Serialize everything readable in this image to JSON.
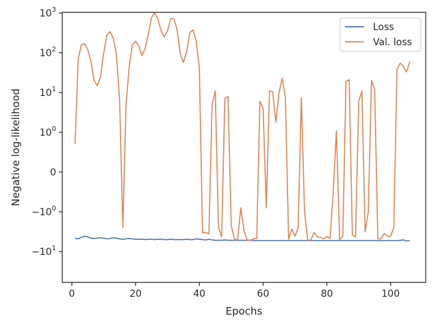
{
  "chart_data": {
    "type": "line",
    "title": "",
    "xlabel": "Epochs",
    "ylabel": "Negative log-likelihood",
    "yscale": "symlog",
    "xlim": [
      -3,
      111
    ],
    "x_ticks": [
      0,
      20,
      40,
      60,
      80,
      100
    ],
    "x_tick_labels": [
      "0",
      "20",
      "40",
      "60",
      "80",
      "100"
    ],
    "y_ticks": [
      {
        "value": -10,
        "base": "−10",
        "exp": "1"
      },
      {
        "value": -1,
        "base": "−10",
        "exp": "0"
      },
      {
        "value": 0,
        "base": "0",
        "exp": ""
      },
      {
        "value": 1,
        "base": "10",
        "exp": "0"
      },
      {
        "value": 10,
        "base": "10",
        "exp": "1"
      },
      {
        "value": 100,
        "base": "10",
        "exp": "2"
      },
      {
        "value": 1000,
        "base": "10",
        "exp": "3"
      }
    ],
    "grid": false,
    "legend_position": "top-right",
    "colors": {
      "Loss": "#4c72b0",
      "Val. loss": "#dd8452",
      "axis": "#262626"
    },
    "series": [
      {
        "name": "Loss",
        "x": [
          1,
          2,
          3,
          4,
          5,
          6,
          7,
          8,
          9,
          10,
          11,
          12,
          13,
          14,
          15,
          16,
          17,
          18,
          19,
          20,
          21,
          22,
          23,
          24,
          25,
          26,
          27,
          28,
          29,
          30,
          31,
          32,
          33,
          34,
          35,
          36,
          37,
          38,
          39,
          40,
          41,
          42,
          43,
          44,
          45,
          46,
          47,
          48,
          49,
          50,
          51,
          52,
          53,
          54,
          55,
          56,
          57,
          58,
          59,
          60,
          61,
          62,
          63,
          64,
          65,
          66,
          67,
          68,
          69,
          70,
          71,
          72,
          73,
          74,
          75,
          76,
          77,
          78,
          79,
          80,
          81,
          82,
          83,
          84,
          85,
          86,
          87,
          88,
          89,
          90,
          91,
          92,
          93,
          94,
          95,
          96,
          97,
          98,
          99,
          100,
          101,
          102,
          103,
          104,
          105,
          106
        ],
        "y": [
          -4.6,
          -4.8,
          -4.4,
          -4.1,
          -4.3,
          -4.6,
          -4.7,
          -4.6,
          -4.5,
          -4.6,
          -4.8,
          -4.7,
          -4.5,
          -4.6,
          -4.8,
          -4.9,
          -4.8,
          -4.7,
          -4.8,
          -4.9,
          -4.9,
          -4.9,
          -5.0,
          -4.9,
          -4.9,
          -5.0,
          -4.9,
          -4.9,
          -5.0,
          -5.0,
          -4.9,
          -5.0,
          -5.0,
          -5.0,
          -5.0,
          -4.9,
          -5.0,
          -5.0,
          -4.8,
          -4.9,
          -5.0,
          -5.1,
          -4.9,
          -5.1,
          -5.2,
          -5.2,
          -5.2,
          -5.1,
          -5.2,
          -5.2,
          -5.2,
          -5.2,
          -5.2,
          -5.2,
          -5.2,
          -5.2,
          -5.3,
          -5.3,
          -5.3,
          -5.3,
          -5.3,
          -5.3,
          -5.3,
          -5.3,
          -5.3,
          -5.3,
          -5.3,
          -5.3,
          -5.3,
          -5.3,
          -5.3,
          -5.3,
          -5.3,
          -5.3,
          -5.3,
          -5.3,
          -5.3,
          -5.3,
          -5.3,
          -5.3,
          -5.3,
          -5.3,
          -5.3,
          -5.3,
          -5.3,
          -5.3,
          -5.3,
          -5.3,
          -5.3,
          -5.3,
          -5.3,
          -5.3,
          -5.3,
          -5.3,
          -5.3,
          -5.3,
          -5.3,
          -5.3,
          -5.3,
          -5.3,
          -5.3,
          -5.3,
          -5.2,
          -5.1,
          -5.4,
          -5.3
        ]
      },
      {
        "name": "Val. loss",
        "x": [
          1,
          2,
          3,
          4,
          5,
          6,
          7,
          8,
          9,
          10,
          11,
          12,
          13,
          14,
          15,
          16,
          17,
          18,
          19,
          20,
          21,
          22,
          23,
          24,
          25,
          26,
          27,
          28,
          29,
          30,
          31,
          32,
          33,
          34,
          35,
          36,
          37,
          38,
          39,
          40,
          41,
          42,
          43,
          44,
          45,
          46,
          47,
          48,
          49,
          50,
          51,
          52,
          53,
          54,
          55,
          56,
          57,
          58,
          59,
          60,
          61,
          62,
          63,
          64,
          65,
          66,
          67,
          68,
          69,
          70,
          71,
          72,
          73,
          74,
          75,
          76,
          77,
          78,
          79,
          80,
          81,
          82,
          83,
          84,
          85,
          86,
          87,
          88,
          89,
          90,
          91,
          92,
          93,
          94,
          95,
          96,
          97,
          98,
          99,
          100,
          101,
          102,
          103,
          104,
          105,
          106
        ],
        "y": [
          0.7,
          70,
          160,
          170,
          120,
          60,
          20,
          15,
          25,
          100,
          280,
          340,
          230,
          90,
          6,
          -2.5,
          5,
          45,
          160,
          195,
          150,
          85,
          130,
          300,
          780,
          1000,
          700,
          360,
          250,
          350,
          730,
          710,
          390,
          95,
          57,
          105,
          320,
          380,
          200,
          42,
          -3.4,
          -3.3,
          -3.6,
          5,
          11,
          -2.5,
          -4.3,
          7,
          8,
          -2.2,
          -4.8,
          -5.2,
          -0.9,
          -3.0,
          -5.1,
          -5.2,
          -4.8,
          -4.7,
          6,
          4,
          -0.9,
          11,
          10.5,
          1.8,
          10,
          23,
          7.5,
          -4.9,
          -2.7,
          -4.1,
          -2.5,
          7.5,
          -1.0,
          -5.2,
          -5.1,
          -3.3,
          -4.3,
          -4.4,
          -4.8,
          -4.2,
          -4.7,
          -0.5,
          1.1,
          -5.0,
          -4.2,
          19,
          21,
          -3.8,
          -4.3,
          6,
          11,
          -3.2,
          -1.0,
          20,
          12,
          -4.8,
          -4.8,
          -3.5,
          -4.1,
          -4.1,
          -2.5,
          38,
          55,
          46,
          33,
          60
        ]
      }
    ]
  }
}
